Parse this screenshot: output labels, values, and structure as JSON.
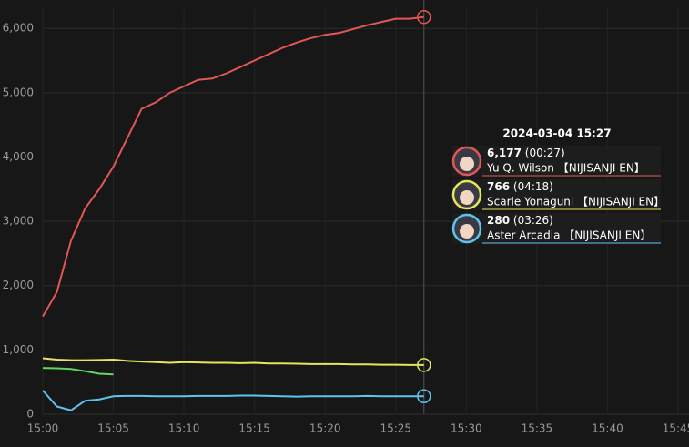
{
  "chart_data": {
    "type": "line",
    "x": [
      "15:00",
      "15:01",
      "15:02",
      "15:03",
      "15:04",
      "15:05",
      "15:06",
      "15:07",
      "15:08",
      "15:09",
      "15:10",
      "15:11",
      "15:12",
      "15:13",
      "15:14",
      "15:15",
      "15:16",
      "15:17",
      "15:18",
      "15:19",
      "15:20",
      "15:21",
      "15:22",
      "15:23",
      "15:24",
      "15:25",
      "15:26",
      "15:27"
    ],
    "xlim": [
      "15:00",
      "15:45"
    ],
    "xticks": [
      "15:00",
      "15:05",
      "15:10",
      "15:15",
      "15:20",
      "15:25",
      "15:30",
      "15:35",
      "15:40",
      "15:45"
    ],
    "ylim": [
      0,
      6300
    ],
    "yticks": [
      0,
      {
        "value": 1000,
        "label": "1,000"
      },
      {
        "value": 2000,
        "label": "2,000"
      },
      {
        "value": 3000,
        "label": "3,000"
      },
      {
        "value": 4000,
        "label": "4,000"
      },
      {
        "value": 5000,
        "label": "5,000"
      },
      {
        "value": 6000,
        "label": "6,000"
      }
    ],
    "grid": true,
    "series": [
      {
        "name": "Yu Q. Wilson 【NIJISANJI EN】",
        "color": "#e35656",
        "values": [
          1520,
          1900,
          2700,
          3200,
          3500,
          3850,
          4300,
          4750,
          4850,
          5000,
          5100,
          5200,
          5220,
          5300,
          5400,
          5500,
          5600,
          5700,
          5780,
          5850,
          5900,
          5930,
          5990,
          6050,
          6100,
          6150,
          6150,
          6177
        ]
      },
      {
        "name": "Scarle Yonaguni 【NIJISANJI EN】",
        "color": "#e6e65c",
        "values": [
          870,
          850,
          840,
          840,
          845,
          850,
          830,
          820,
          810,
          800,
          810,
          805,
          800,
          800,
          795,
          800,
          790,
          790,
          785,
          780,
          780,
          780,
          775,
          775,
          770,
          770,
          766,
          766
        ]
      },
      {
        "color": "#5fd85f",
        "values": [
          720,
          715,
          705,
          670,
          630,
          620,
          null,
          null,
          null,
          null,
          null,
          null,
          null,
          null,
          null,
          null,
          null,
          null,
          null,
          null,
          null,
          null,
          null,
          null,
          null,
          null,
          null,
          null
        ]
      },
      {
        "name": "Aster Arcadia 【NIJISANJI EN】",
        "color": "#5ec4ee",
        "values": [
          370,
          120,
          60,
          210,
          230,
          280,
          285,
          285,
          280,
          280,
          280,
          285,
          285,
          285,
          290,
          290,
          285,
          280,
          275,
          280,
          280,
          280,
          280,
          285,
          280,
          280,
          280,
          280
        ]
      }
    ],
    "tooltip": {
      "title": "2024-03-04 15:27",
      "items": [
        {
          "series": 0,
          "value_label": "6,177",
          "duration": "(00:27)"
        },
        {
          "series": 1,
          "value_label": "766",
          "duration": "(04:18)"
        },
        {
          "series": 3,
          "value_label": "280",
          "duration": "(03:26)"
        }
      ]
    }
  }
}
